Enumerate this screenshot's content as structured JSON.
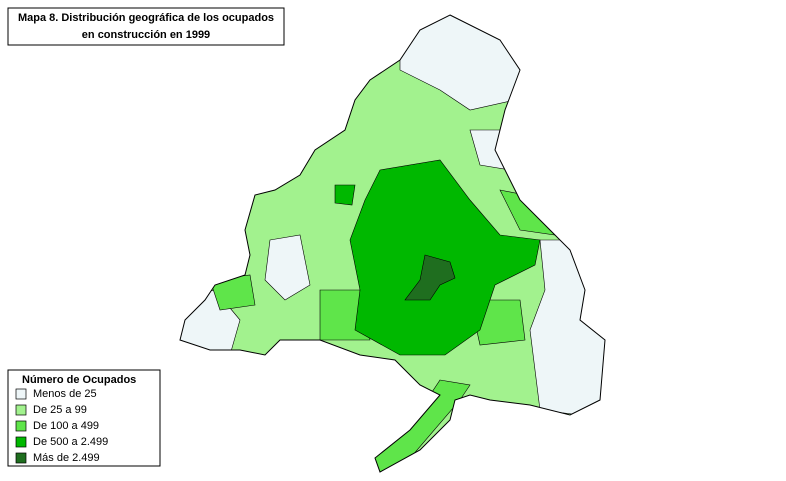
{
  "title": {
    "line1": "Mapa 8. Distribución geográfica de los ocupados",
    "line2": "en construcción en 1999"
  },
  "legend": {
    "title": "Número de Ocupados",
    "items": [
      {
        "label": "Menos de 25",
        "color": "#eef6f8"
      },
      {
        "label": "De 25 a 99",
        "color": "#a2f28e"
      },
      {
        "label": "De 100 a 499",
        "color": "#5fe54a"
      },
      {
        "label": "De 500 a 2.499",
        "color": "#00b800"
      },
      {
        "label": "Más de 2.499",
        "color": "#1f6e1f"
      }
    ]
  }
}
